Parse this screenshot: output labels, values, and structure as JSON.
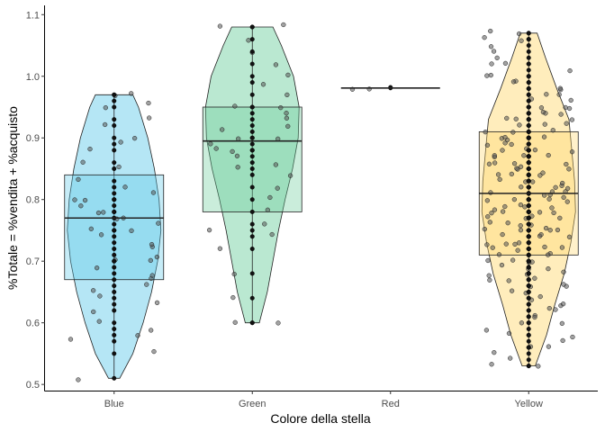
{
  "chart_data": {
    "type": "violin",
    "xlabel": "Colore della stella",
    "ylabel": "%Totale = %vendita + %acquisto",
    "ylim": [
      0.49,
      1.115
    ],
    "yticks": [
      0.5,
      0.6,
      0.7,
      0.8,
      0.9,
      1.0,
      1.1
    ],
    "ytick_labels": [
      "0.5",
      "0.6",
      "0.7",
      "0.8",
      "0.9",
      "1.0",
      "1.1"
    ],
    "grid": false,
    "categories": [
      "Blue",
      "Green",
      "Red",
      "Yellow"
    ],
    "series": [
      {
        "category": "Blue",
        "color": "#5bc8e8",
        "box": {
          "q1": 0.67,
          "median": 0.77,
          "q3": 0.84,
          "min": 0.51,
          "max": 0.97
        },
        "violin": [
          [
            0.51,
            0.12
          ],
          [
            0.55,
            0.4
          ],
          [
            0.6,
            0.62
          ],
          [
            0.65,
            0.8
          ],
          [
            0.7,
            0.93
          ],
          [
            0.75,
            1.0
          ],
          [
            0.8,
            0.96
          ],
          [
            0.85,
            0.86
          ],
          [
            0.9,
            0.72
          ],
          [
            0.95,
            0.52
          ],
          [
            0.97,
            0.4
          ]
        ],
        "points": [
          0.51,
          0.55,
          0.57,
          0.58,
          0.59,
          0.6,
          0.62,
          0.63,
          0.64,
          0.65,
          0.66,
          0.67,
          0.68,
          0.69,
          0.7,
          0.7,
          0.71,
          0.72,
          0.73,
          0.74,
          0.75,
          0.75,
          0.76,
          0.77,
          0.77,
          0.78,
          0.78,
          0.79,
          0.8,
          0.8,
          0.81,
          0.82,
          0.83,
          0.85,
          0.86,
          0.88,
          0.89,
          0.9,
          0.92,
          0.93,
          0.95,
          0.96,
          0.97,
          0.97
        ]
      },
      {
        "category": "Green",
        "color": "#66cc99",
        "box": {
          "q1": 0.78,
          "median": 0.895,
          "q3": 0.95,
          "min": 0.6,
          "max": 1.08
        },
        "violin": [
          [
            0.6,
            0.15
          ],
          [
            0.65,
            0.32
          ],
          [
            0.7,
            0.44
          ],
          [
            0.75,
            0.56
          ],
          [
            0.8,
            0.7
          ],
          [
            0.85,
            0.86
          ],
          [
            0.9,
            0.98
          ],
          [
            0.95,
            1.0
          ],
          [
            1.0,
            0.88
          ],
          [
            1.05,
            0.62
          ],
          [
            1.08,
            0.44
          ]
        ],
        "points": [
          0.6,
          0.6,
          0.64,
          0.68,
          0.72,
          0.74,
          0.75,
          0.76,
          0.78,
          0.8,
          0.82,
          0.84,
          0.85,
          0.86,
          0.87,
          0.88,
          0.88,
          0.89,
          0.9,
          0.9,
          0.91,
          0.92,
          0.93,
          0.94,
          0.95,
          0.95,
          0.97,
          0.99,
          1.0,
          1.02,
          1.04,
          1.06,
          1.08,
          1.08
        ]
      },
      {
        "category": "Red",
        "color": "#e8736b",
        "box": {
          "q1": 0.981,
          "median": 0.981,
          "q3": 0.981,
          "min": 0.981,
          "max": 0.981
        },
        "violin": [],
        "points": [
          0.981,
          0.982
        ]
      },
      {
        "category": "Yellow",
        "color": "#ffd66b",
        "box": {
          "q1": 0.71,
          "median": 0.81,
          "q3": 0.91,
          "min": 0.53,
          "max": 1.07
        },
        "violin": [
          [
            0.53,
            0.14
          ],
          [
            0.58,
            0.38
          ],
          [
            0.63,
            0.56
          ],
          [
            0.68,
            0.76
          ],
          [
            0.73,
            0.9
          ],
          [
            0.78,
            1.0
          ],
          [
            0.83,
            0.98
          ],
          [
            0.88,
            0.92
          ],
          [
            0.93,
            0.86
          ],
          [
            0.98,
            0.6
          ],
          [
            1.03,
            0.36
          ],
          [
            1.07,
            0.18
          ]
        ],
        "points": [
          0.53,
          0.53,
          0.54,
          0.55,
          0.56,
          0.56,
          0.57,
          0.58,
          0.58,
          0.59,
          0.6,
          0.6,
          0.61,
          0.61,
          0.62,
          0.62,
          0.63,
          0.63,
          0.64,
          0.64,
          0.65,
          0.65,
          0.66,
          0.66,
          0.66,
          0.67,
          0.67,
          0.67,
          0.68,
          0.68,
          0.68,
          0.69,
          0.69,
          0.69,
          0.7,
          0.7,
          0.7,
          0.7,
          0.71,
          0.71,
          0.71,
          0.72,
          0.72,
          0.72,
          0.72,
          0.73,
          0.73,
          0.73,
          0.73,
          0.74,
          0.74,
          0.74,
          0.74,
          0.75,
          0.75,
          0.75,
          0.75,
          0.75,
          0.76,
          0.76,
          0.76,
          0.76,
          0.77,
          0.77,
          0.77,
          0.77,
          0.78,
          0.78,
          0.78,
          0.78,
          0.78,
          0.79,
          0.79,
          0.79,
          0.79,
          0.8,
          0.8,
          0.8,
          0.8,
          0.8,
          0.81,
          0.81,
          0.81,
          0.81,
          0.81,
          0.82,
          0.82,
          0.82,
          0.82,
          0.83,
          0.83,
          0.83,
          0.83,
          0.84,
          0.84,
          0.84,
          0.84,
          0.85,
          0.85,
          0.85,
          0.85,
          0.86,
          0.86,
          0.86,
          0.86,
          0.87,
          0.87,
          0.87,
          0.87,
          0.88,
          0.88,
          0.88,
          0.88,
          0.89,
          0.89,
          0.89,
          0.9,
          0.9,
          0.9,
          0.9,
          0.91,
          0.91,
          0.91,
          0.92,
          0.92,
          0.92,
          0.93,
          0.93,
          0.93,
          0.94,
          0.94,
          0.94,
          0.95,
          0.95,
          0.95,
          0.96,
          0.96,
          0.97,
          0.97,
          0.98,
          0.98,
          0.99,
          0.99,
          1.0,
          1.0,
          1.01,
          1.02,
          1.02,
          1.03,
          1.04,
          1.05,
          1.06,
          1.06,
          1.07,
          1.07
        ]
      }
    ]
  }
}
